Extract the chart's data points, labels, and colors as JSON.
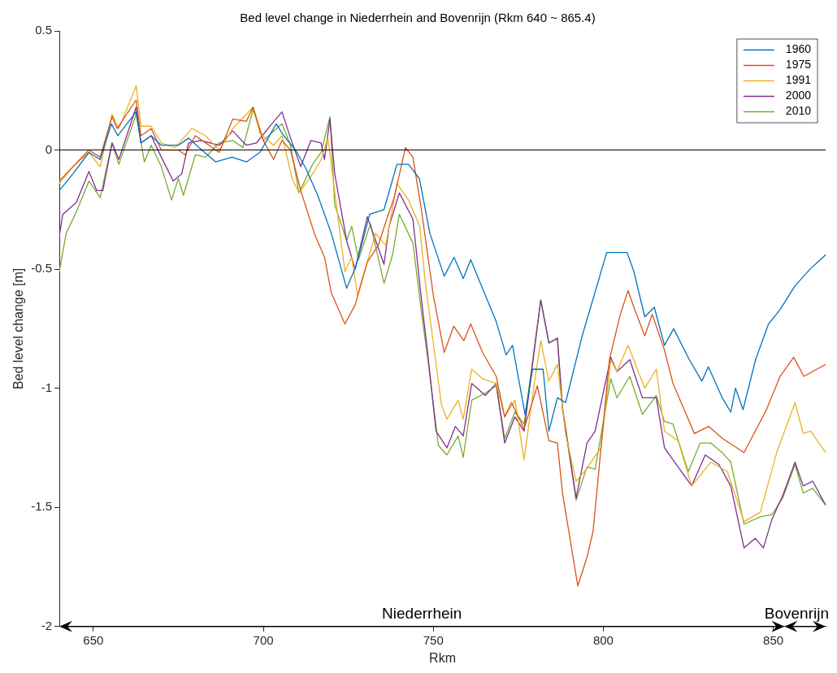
{
  "chart_data": {
    "type": "line",
    "title": "Bed level change in Niederrhein and Bovenrijn (Rkm 640 ~ 865.4)",
    "xlabel": "Rkm",
    "ylabel": "Bed level change [m]",
    "xlim": [
      640,
      865.4
    ],
    "xticks": [
      650,
      700,
      750,
      800,
      850
    ],
    "ylim": [
      -2,
      0.5
    ],
    "yticks": [
      -2,
      -1.5,
      -1,
      -0.5,
      0,
      0.5
    ],
    "legend": "top right",
    "marker": "none",
    "ref_lines": [
      {
        "axis": "y",
        "value": 0,
        "color": "#000000"
      }
    ],
    "annotations": [
      "Niederrhein",
      "Bovenrijn"
    ],
    "series": [
      {
        "name": "1960",
        "color": "#0072bd",
        "x": [
          640,
          644,
          648.7,
          652,
          655.3,
          657.2,
          662.6,
          664,
          667,
          670,
          675,
          678,
          682.7,
          686,
          690.8,
          695,
          699,
          703.8,
          706,
          709.5,
          712.6,
          716,
          720,
          724.5,
          727.2,
          731.3,
          735.5,
          739.3,
          742.7,
          745.9,
          749,
          753.2,
          756.1,
          758.8,
          761,
          765.3,
          768.5,
          771.4,
          773.3,
          777,
          779.2,
          782.3,
          784,
          786.5,
          788.9,
          793.8,
          801,
          807,
          809,
          812.2,
          815,
          818,
          820.7,
          825.3,
          829,
          830.9,
          835,
          837.5,
          838.9,
          841.1,
          844.8,
          848.6,
          852,
          856.4,
          860.8,
          865.4
        ],
        "values": [
          -0.17,
          -0.1,
          -0.01,
          -0.04,
          0.11,
          0.06,
          0.16,
          0.03,
          0.06,
          0.02,
          0.02,
          0.05,
          -0.01,
          -0.05,
          -0.03,
          -0.05,
          -0.01,
          0.11,
          0.06,
          0.0,
          -0.08,
          -0.19,
          -0.35,
          -0.58,
          -0.49,
          -0.27,
          -0.25,
          -0.06,
          -0.06,
          -0.12,
          -0.35,
          -0.53,
          -0.45,
          -0.54,
          -0.46,
          -0.61,
          -0.72,
          -0.86,
          -0.82,
          -1.11,
          -0.92,
          -0.92,
          -1.18,
          -1.04,
          -1.06,
          -0.78,
          -0.43,
          -0.43,
          -0.51,
          -0.7,
          -0.66,
          -0.82,
          -0.75,
          -0.88,
          -0.97,
          -0.91,
          -1.04,
          -1.1,
          -1.0,
          -1.09,
          -0.88,
          -0.73,
          -0.67,
          -0.57,
          -0.5,
          -0.44
        ]
      },
      {
        "name": "1975",
        "color": "#d95319",
        "x": [
          640,
          644,
          648.7,
          652,
          655.5,
          657,
          662.6,
          664,
          667,
          670,
          675,
          677,
          680,
          684,
          687,
          691,
          695,
          697,
          700,
          703,
          705.5,
          708,
          711,
          715,
          718,
          720,
          724,
          727,
          730.6,
          733.8,
          737,
          738.5,
          741.8,
          744,
          746.6,
          750,
          753.2,
          756,
          759,
          761,
          764.5,
          768.5,
          771,
          773,
          776.7,
          780.6,
          784,
          786.5,
          788,
          792.5,
          795.2,
          797,
          801.8,
          805,
          807.3,
          809,
          812.2,
          814.4,
          818,
          820.5,
          826.8,
          831,
          835,
          841.4,
          848,
          852,
          856,
          859,
          865.4
        ],
        "values": [
          -0.13,
          -0.07,
          0.0,
          -0.03,
          0.14,
          0.09,
          0.21,
          0.06,
          0.09,
          0.0,
          0.0,
          -0.02,
          0.06,
          0.02,
          -0.01,
          0.13,
          0.12,
          0.18,
          0.04,
          -0.04,
          0.04,
          0.0,
          -0.17,
          -0.35,
          -0.45,
          -0.6,
          -0.73,
          -0.65,
          -0.47,
          -0.4,
          -0.26,
          -0.2,
          0.01,
          -0.03,
          -0.26,
          -0.61,
          -0.85,
          -0.74,
          -0.8,
          -0.73,
          -0.85,
          -0.95,
          -1.12,
          -1.06,
          -1.17,
          -0.99,
          -1.22,
          -1.23,
          -1.44,
          -1.83,
          -1.71,
          -1.6,
          -0.88,
          -0.69,
          -0.59,
          -0.66,
          -0.78,
          -0.69,
          -0.84,
          -0.98,
          -1.19,
          -1.16,
          -1.21,
          -1.27,
          -1.09,
          -0.95,
          -0.87,
          -0.95,
          -0.9
        ]
      },
      {
        "name": "1991",
        "color": "#edb120",
        "x": [
          640,
          644,
          648.7,
          652,
          655.5,
          657.5,
          662.6,
          664,
          667,
          670,
          674,
          679,
          683,
          687,
          691,
          697,
          699,
          703,
          705.5,
          708.5,
          710.5,
          714.5,
          717,
          719,
          720.5,
          724,
          726,
          727.7,
          733,
          736,
          739.3,
          742.7,
          746,
          747.6,
          750,
          752.4,
          754,
          757.3,
          758.8,
          761.3,
          764.5,
          768.5,
          771,
          774,
          776.7,
          780,
          781.6,
          784,
          786.5,
          788.9,
          792,
          795,
          799.3,
          802.2,
          804,
          807.3,
          812.2,
          815.6,
          818,
          822,
          826,
          831.6,
          836.5,
          841.4,
          846.2,
          851,
          856.4,
          858.8,
          861,
          865.4
        ],
        "values": [
          -0.14,
          -0.07,
          -0.01,
          -0.07,
          0.15,
          0.09,
          0.27,
          0.1,
          0.1,
          0.03,
          0.01,
          0.09,
          0.06,
          0.0,
          0.09,
          0.18,
          0.07,
          0.02,
          0.06,
          -0.12,
          -0.18,
          -0.1,
          -0.04,
          0.05,
          -0.12,
          -0.51,
          -0.45,
          -0.61,
          -0.35,
          -0.4,
          -0.14,
          -0.21,
          -0.32,
          -0.55,
          -0.81,
          -1.07,
          -1.13,
          -1.05,
          -1.13,
          -0.92,
          -0.96,
          -0.98,
          -1.12,
          -1.05,
          -1.3,
          -0.95,
          -0.8,
          -0.97,
          -0.9,
          -1.19,
          -1.39,
          -1.34,
          -1.25,
          -0.88,
          -0.93,
          -0.82,
          -1.0,
          -0.92,
          -1.18,
          -1.22,
          -1.41,
          -1.31,
          -1.35,
          -1.56,
          -1.52,
          -1.27,
          -1.06,
          -1.19,
          -1.18,
          -1.27
        ]
      },
      {
        "name": "2000",
        "color": "#7e2f8e",
        "x": [
          640,
          641,
          645,
          648.7,
          651,
          652.8,
          655.5,
          657.5,
          662.6,
          664,
          667,
          670,
          673.5,
          676,
          678,
          681.5,
          687,
          691,
          695,
          698,
          702.5,
          705.5,
          708,
          711,
          714,
          717,
          718,
          719.6,
          721,
          724.5,
          727,
          730.6,
          735.5,
          737,
          740,
          744,
          746.6,
          748.4,
          750.8,
          754,
          756.5,
          758.8,
          761.3,
          765.3,
          768.5,
          771,
          774,
          776.7,
          781.6,
          784,
          786.5,
          788,
          792,
          795.2,
          797.6,
          802.2,
          804,
          807.8,
          811.5,
          815.6,
          818,
          821,
          826,
          830,
          834,
          837.5,
          841.4,
          844.7,
          847.1,
          849.6,
          852.8,
          856.4,
          858.8,
          861.6,
          865.4
        ],
        "values": [
          -0.36,
          -0.27,
          -0.22,
          -0.09,
          -0.17,
          -0.17,
          0.03,
          -0.04,
          0.18,
          0.03,
          0.06,
          -0.03,
          -0.13,
          -0.1,
          0.03,
          0.04,
          0.02,
          0.08,
          0.02,
          0.03,
          0.11,
          0.16,
          0.05,
          -0.07,
          0.04,
          0.03,
          -0.04,
          0.13,
          -0.1,
          -0.38,
          -0.5,
          -0.28,
          -0.48,
          -0.32,
          -0.18,
          -0.29,
          -0.64,
          -0.86,
          -1.18,
          -1.25,
          -1.16,
          -1.2,
          -0.98,
          -1.03,
          -0.98,
          -1.23,
          -1.12,
          -1.18,
          -0.63,
          -0.81,
          -0.79,
          -1.08,
          -1.46,
          -1.23,
          -1.18,
          -0.87,
          -0.93,
          -0.88,
          -1.04,
          -1.04,
          -1.25,
          -1.31,
          -1.41,
          -1.28,
          -1.32,
          -1.41,
          -1.67,
          -1.63,
          -1.67,
          -1.55,
          -1.45,
          -1.31,
          -1.41,
          -1.39,
          -1.49
        ]
      },
      {
        "name": "2010",
        "color": "#77ac30",
        "x": [
          640,
          642,
          645,
          648.7,
          652,
          655.5,
          657.5,
          662.6,
          665,
          667,
          670,
          673,
          675,
          676.5,
          680,
          683,
          687,
          691,
          694,
          697,
          700,
          705.5,
          708,
          710.5,
          714.5,
          717,
          719.6,
          721,
          724.5,
          726,
          728,
          731.5,
          735.5,
          738,
          740,
          744,
          746.6,
          748.4,
          751.5,
          754,
          757.3,
          758.8,
          761.3,
          765.3,
          768.5,
          771,
          774,
          776.7,
          781.6,
          784,
          786.5,
          788,
          792,
          795.2,
          797.6,
          802.2,
          804,
          807.8,
          811.5,
          815.6,
          818,
          820.5,
          825,
          828.5,
          831.6,
          835,
          837.5,
          841.4,
          846.2,
          849.6,
          852.8,
          856.4,
          858.8,
          861.6,
          865.4
        ],
        "values": [
          -0.51,
          -0.35,
          -0.26,
          -0.13,
          -0.2,
          0.03,
          -0.06,
          0.15,
          -0.05,
          0.02,
          -0.07,
          -0.21,
          -0.12,
          -0.19,
          -0.02,
          -0.03,
          0.03,
          0.04,
          0.01,
          0.17,
          0.04,
          0.11,
          0.02,
          -0.18,
          -0.06,
          -0.01,
          0.14,
          -0.23,
          -0.38,
          -0.32,
          -0.46,
          -0.31,
          -0.56,
          -0.44,
          -0.27,
          -0.39,
          -0.69,
          -0.88,
          -1.24,
          -1.28,
          -1.2,
          -1.29,
          -1.05,
          -1.02,
          -0.99,
          -1.21,
          -1.1,
          -1.15,
          -0.63,
          -0.81,
          -0.79,
          -1.09,
          -1.47,
          -1.33,
          -1.34,
          -0.96,
          -1.04,
          -0.95,
          -1.11,
          -1.03,
          -1.14,
          -1.15,
          -1.35,
          -1.23,
          -1.23,
          -1.27,
          -1.31,
          -1.57,
          -1.54,
          -1.53,
          -1.46,
          -1.32,
          -1.44,
          -1.42,
          -1.49
        ]
      }
    ]
  }
}
